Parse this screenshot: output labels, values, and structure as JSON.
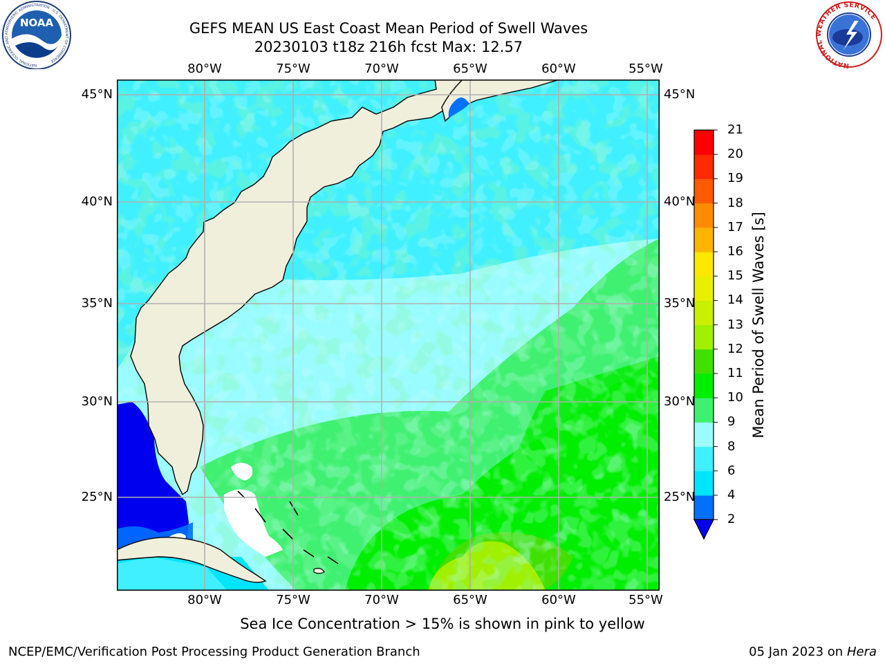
{
  "header": {
    "title_line1": "GEFS MEAN US East Coast Mean Period of Swell Waves",
    "title_line2": "20230103 t18z 216h fcst   Max: 12.57"
  },
  "logos": {
    "left": "NOAA",
    "left_ring": "NATIONAL OCEANIC AND ATMOSPHERIC ADMINISTRATION · U.S. DEPARTMENT OF COMMERCE",
    "right_ring": "NATIONAL WEATHER SERVICE"
  },
  "map": {
    "lon_labels": [
      "80°W",
      "75°W",
      "70°W",
      "65°W",
      "60°W",
      "55°W"
    ],
    "lat_labels": [
      "45°N",
      "40°N",
      "35°N",
      "30°N",
      "25°N"
    ],
    "colors": {
      "land": "#efefdc",
      "grid": "#b0b0b0"
    }
  },
  "colorbar": {
    "label": "Mean Period of Swell Waves [s]",
    "ticks": [
      "21",
      "20",
      "19",
      "18",
      "17",
      "16",
      "15",
      "14",
      "13",
      "12",
      "11",
      "10",
      "9",
      "8",
      "6",
      "4",
      "2"
    ],
    "bins": [
      {
        "from": 2,
        "to": 4,
        "color": "#0070ff"
      },
      {
        "from": 4,
        "to": 6,
        "color": "#00e5ff"
      },
      {
        "from": 6,
        "to": 8,
        "color": "#40f0ff"
      },
      {
        "from": 8,
        "to": 9,
        "color": "#9afcff"
      },
      {
        "from": 9,
        "to": 10,
        "color": "#40f070"
      },
      {
        "from": 10,
        "to": 11,
        "color": "#00ee00"
      },
      {
        "from": 11,
        "to": 12,
        "color": "#40e000"
      },
      {
        "from": 12,
        "to": 13,
        "color": "#a0f000"
      },
      {
        "from": 13,
        "to": 14,
        "color": "#c8f000"
      },
      {
        "from": 14,
        "to": 15,
        "color": "#e8f000"
      },
      {
        "from": 15,
        "to": 16,
        "color": "#ffe800"
      },
      {
        "from": 16,
        "to": 17,
        "color": "#ffb400"
      },
      {
        "from": 17,
        "to": 18,
        "color": "#ff8c00"
      },
      {
        "from": 18,
        "to": 19,
        "color": "#ff5a00"
      },
      {
        "from": 19,
        "to": 20,
        "color": "#ff2a00"
      },
      {
        "from": 20,
        "to": 21,
        "color": "#ff0000"
      }
    ],
    "under_color": "#0000ee"
  },
  "footer": {
    "note": "Sea Ice Concentration > 15% is shown in pink to yellow",
    "left": "NCEP/EMC/Verification Post Processing Product Generation Branch",
    "right_prefix": "05 Jan 2023 on ",
    "right_host": "Hera"
  }
}
